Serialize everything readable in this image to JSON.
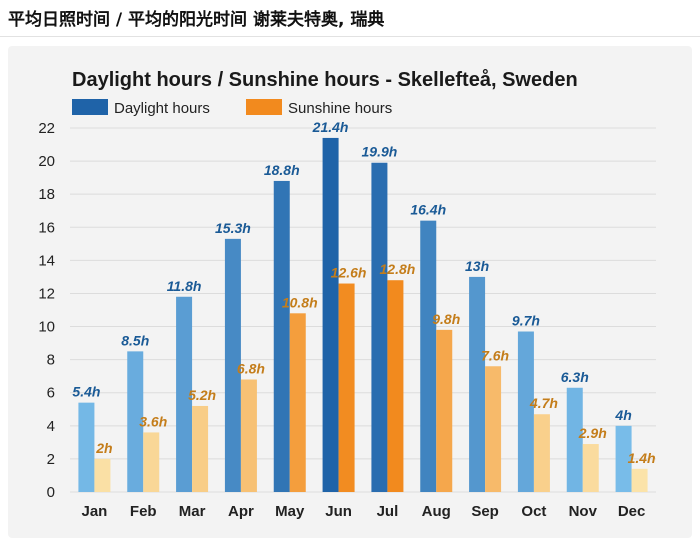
{
  "page": {
    "title": "平均日照时间 / 平均的阳光时间 谢莱夫特奥, 瑞典"
  },
  "colors": {
    "daylight": "#1f63a8",
    "daylight_light": "#7fc2ee",
    "sunshine": "#f28a1e",
    "sunshine_light": "#f6d36a",
    "daylight_label": "#1a5a96",
    "sunshine_label": "#c47d1a",
    "grid": "#dcdcdc"
  },
  "chart_data": {
    "type": "bar",
    "title": "Daylight hours / Sunshine hours - Skellefteå, Sweden",
    "xlabel": "",
    "ylabel": "",
    "ylim": [
      0,
      22
    ],
    "yticks": [
      0,
      2,
      4,
      6,
      8,
      10,
      12,
      14,
      16,
      18,
      20,
      22
    ],
    "grid": true,
    "legend_position": "top-left",
    "categories": [
      "Jan",
      "Feb",
      "Mar",
      "Apr",
      "May",
      "Jun",
      "Jul",
      "Aug",
      "Sep",
      "Oct",
      "Nov",
      "Dec"
    ],
    "series": [
      {
        "name": "Daylight hours",
        "values": [
          5.4,
          8.5,
          11.8,
          15.3,
          18.8,
          21.4,
          19.9,
          16.4,
          13,
          9.7,
          6.3,
          4
        ],
        "labels": [
          "5.4h",
          "8.5h",
          "11.8h",
          "15.3h",
          "18.8h",
          "21.4h",
          "19.9h",
          "16.4h",
          "13h",
          "9.7h",
          "6.3h",
          "4h"
        ]
      },
      {
        "name": "Sunshine hours",
        "values": [
          2,
          3.6,
          5.2,
          6.8,
          10.8,
          12.6,
          12.8,
          9.8,
          7.6,
          4.7,
          2.9,
          1.4
        ],
        "labels": [
          "2h",
          "3.6h",
          "5.2h",
          "6.8h",
          "10.8h",
          "12.6h",
          "12.8h",
          "9.8h",
          "7.6h",
          "4.7h",
          "2.9h",
          "1.4h"
        ]
      }
    ]
  }
}
